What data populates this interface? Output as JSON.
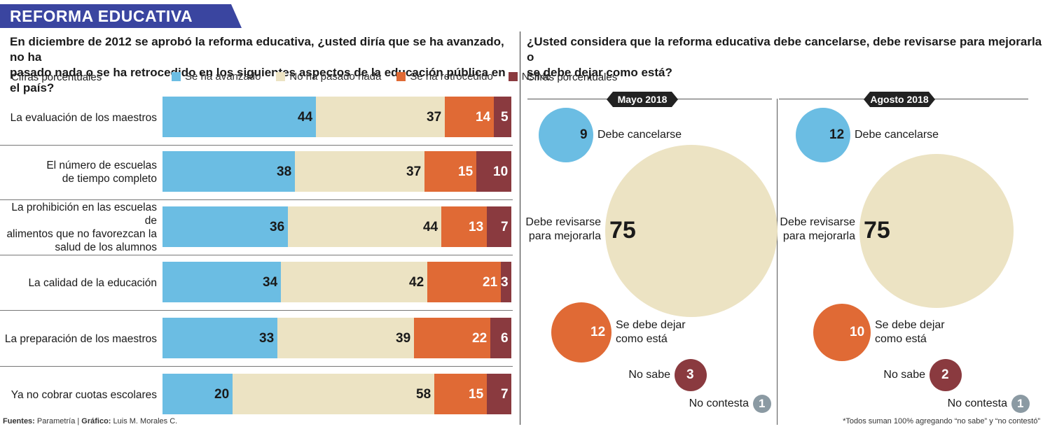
{
  "banner": {
    "title": "REFORMA EDUCATIVA"
  },
  "left": {
    "question_line1": "En diciembre de 2012 se aprobó la reforma educativa, ¿usted diría que se ha avanzado, no ha",
    "question_line2": "pasado nada o se ha retrocedido en los siguientes aspectos de la educación pública en el país?",
    "cifras": "Cifras porcentuales"
  },
  "right": {
    "question_line1": "¿Usted considera que la reforma educativa debe cancelarse, debe revisarse para mejorarla o",
    "question_line2": "se debe dejar como está?",
    "cifras": "Cifras porcentuales"
  },
  "colors": {
    "avanzado": "#6bbde3",
    "nada": "#ece3c3",
    "retrocedido": "#e06a35",
    "nsnc": "#8a3a3f",
    "nocontesta": "#8b9aa3",
    "banner": "#3a45a0"
  },
  "chart_data": [
    {
      "type": "bar",
      "stacked": true,
      "orientation": "horizontal",
      "title": "",
      "categories": [
        "La evaluación de los maestros",
        "El número de escuelas de tiempo completo",
        "La prohibición en las escuelas de alimentos que no favorezcan la salud de los alumnos",
        "La calidad de la educación",
        "La preparación de los maestros",
        "Ya no cobrar cuotas escolares"
      ],
      "category_lines": [
        [
          "La evaluación de los maestros"
        ],
        [
          "El número de escuelas",
          "de tiempo completo"
        ],
        [
          "La prohibición en las escuelas de",
          "alimentos que no favorezcan la",
          "salud de los alumnos"
        ],
        [
          "La calidad de la educación"
        ],
        [
          "La preparación de los maestros"
        ],
        [
          "Ya no cobrar cuotas escolares"
        ]
      ],
      "series": [
        {
          "name": "Se ha avanzado",
          "key": "avanzado",
          "values": [
            44,
            38,
            36,
            34,
            33,
            20
          ]
        },
        {
          "name": "No ha pasado nada",
          "key": "nada",
          "values": [
            37,
            37,
            44,
            42,
            39,
            58
          ]
        },
        {
          "name": "Se ha retrocedido",
          "key": "retrocedido",
          "values": [
            14,
            15,
            13,
            21,
            22,
            15
          ]
        },
        {
          "name": "Ns/Nc",
          "key": "nsnc",
          "values": [
            5,
            10,
            7,
            3,
            6,
            7
          ]
        }
      ],
      "xlim": [
        0,
        100
      ],
      "legend": "top"
    },
    {
      "type": "bubble",
      "title": "Mayo 2018",
      "items": [
        {
          "label": "Debe cancelarse",
          "value": 9,
          "key": "avanzado"
        },
        {
          "label_lines": [
            "Debe revisarse",
            "para mejorarla"
          ],
          "label": "Debe revisarse para mejorarla",
          "value": 75,
          "key": "nada"
        },
        {
          "label_lines": [
            "Se debe dejar",
            "como está"
          ],
          "label": "Se debe dejar como está",
          "value": 12,
          "key": "retrocedido"
        },
        {
          "label": "No sabe",
          "value": 3,
          "key": "nsnc"
        },
        {
          "label": "No contesta",
          "value": 1,
          "key": "nocontesta"
        }
      ]
    },
    {
      "type": "bubble",
      "title": "Agosto 2018",
      "items": [
        {
          "label": "Debe cancelarse",
          "value": 12,
          "key": "avanzado"
        },
        {
          "label_lines": [
            "Debe revisarse",
            "para mejorarla"
          ],
          "label": "Debe revisarse para mejorarla",
          "value": 75,
          "key": "nada"
        },
        {
          "label_lines": [
            "Se debe dejar",
            "como está"
          ],
          "label": "Se debe dejar como está",
          "value": 10,
          "key": "retrocedido"
        },
        {
          "label": "No sabe",
          "value": 2,
          "key": "nsnc"
        },
        {
          "label": "No contesta",
          "value": 1,
          "key": "nocontesta"
        }
      ]
    }
  ],
  "footer": {
    "fuentes_label": "Fuentes:",
    "fuentes": " Parametría | ",
    "grafico_label": "Gráfico:",
    "grafico": " Luis M. Morales C."
  },
  "note": "*Todos suman 100% agregando “no sabe” y “no contestó”"
}
